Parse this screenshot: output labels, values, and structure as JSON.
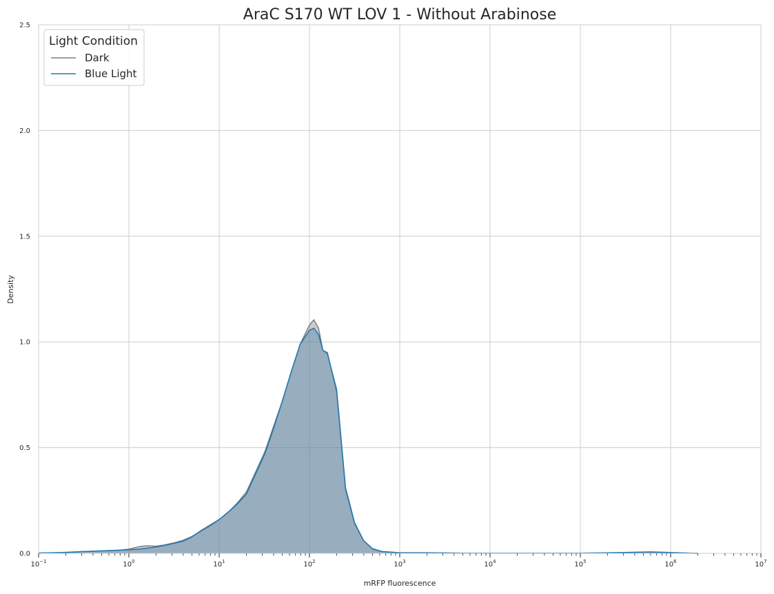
{
  "chart_data": {
    "type": "area",
    "title": "AraC S170 WT LOV 1 - Without Arabinose",
    "xlabel": "mRFP fluorescence",
    "ylabel": "Density",
    "xscale": "log",
    "xlim": [
      0.1,
      10000000
    ],
    "ylim": [
      0,
      2.5
    ],
    "x_ticks": [
      {
        "base": "10",
        "exp": "−1",
        "value": 0.1
      },
      {
        "base": "10",
        "exp": "0",
        "value": 1
      },
      {
        "base": "10",
        "exp": "1",
        "value": 10
      },
      {
        "base": "10",
        "exp": "2",
        "value": 100
      },
      {
        "base": "10",
        "exp": "3",
        "value": 1000
      },
      {
        "base": "10",
        "exp": "4",
        "value": 10000
      },
      {
        "base": "10",
        "exp": "5",
        "value": 100000
      },
      {
        "base": "10",
        "exp": "6",
        "value": 1000000
      },
      {
        "base": "10",
        "exp": "7",
        "value": 10000000
      }
    ],
    "y_ticks": [
      "0.0",
      "0.5",
      "1.0",
      "1.5",
      "2.0",
      "2.5"
    ],
    "grid": true,
    "legend": {
      "title": "Light Condition",
      "position": "top-left"
    },
    "series": [
      {
        "name": "Dark",
        "color": "#7f7f7f",
        "fill": "#808080",
        "x": [
          0.1,
          0.2,
          0.3,
          0.5,
          0.8,
          1.0,
          1.3,
          1.6,
          2.0,
          2.5,
          3.2,
          4.0,
          5.0,
          6.3,
          8.0,
          10,
          13,
          16,
          20,
          25,
          32,
          40,
          50,
          63,
          79,
          100,
          112,
          126,
          141,
          158,
          200,
          251,
          316,
          398,
          501,
          631,
          1000,
          2000,
          5000,
          10000,
          100000,
          300000,
          600000,
          1000000,
          2000000
        ],
        "y": [
          0.0,
          0.005,
          0.008,
          0.012,
          0.015,
          0.02,
          0.032,
          0.036,
          0.034,
          0.04,
          0.05,
          0.062,
          0.08,
          0.105,
          0.13,
          0.16,
          0.2,
          0.24,
          0.29,
          0.38,
          0.48,
          0.6,
          0.72,
          0.86,
          0.99,
          1.08,
          1.105,
          1.065,
          0.96,
          0.95,
          0.76,
          0.3,
          0.14,
          0.06,
          0.02,
          0.008,
          0.003,
          0.003,
          0.001,
          0.001,
          0.001,
          0.003,
          0.006,
          0.003,
          0.0
        ]
      },
      {
        "name": "Blue Light",
        "color": "#1f77b4",
        "fill": "#4a7fa8",
        "x": [
          0.1,
          0.2,
          0.3,
          0.5,
          0.8,
          1.0,
          1.3,
          1.6,
          2.0,
          2.5,
          3.2,
          4.0,
          5.0,
          6.3,
          8.0,
          10,
          13,
          16,
          20,
          25,
          32,
          40,
          50,
          63,
          79,
          100,
          112,
          126,
          141,
          158,
          200,
          251,
          316,
          398,
          501,
          631,
          1000,
          2000,
          5000,
          10000,
          100000,
          300000,
          600000,
          1000000,
          2000000
        ],
        "y": [
          0.002,
          0.004,
          0.008,
          0.012,
          0.015,
          0.017,
          0.02,
          0.025,
          0.03,
          0.038,
          0.048,
          0.058,
          0.078,
          0.108,
          0.135,
          0.16,
          0.2,
          0.235,
          0.28,
          0.37,
          0.47,
          0.59,
          0.72,
          0.86,
          0.99,
          1.055,
          1.065,
          1.035,
          0.96,
          0.945,
          0.775,
          0.31,
          0.145,
          0.06,
          0.022,
          0.009,
          0.003,
          0.003,
          0.001,
          0.001,
          0.001,
          0.004,
          0.007,
          0.004,
          0.0
        ]
      }
    ]
  }
}
